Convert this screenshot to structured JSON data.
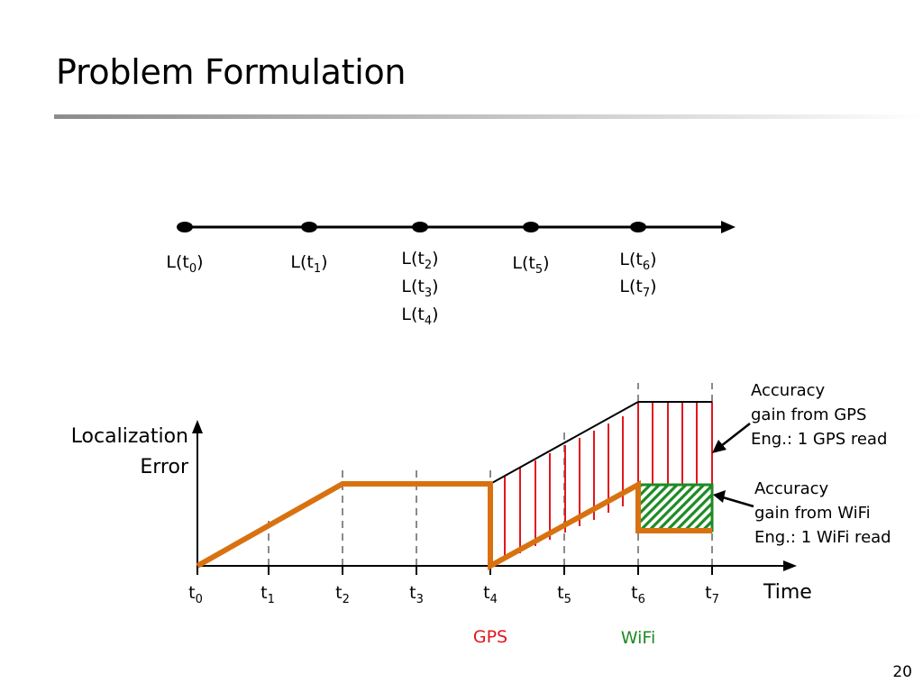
{
  "slide": {
    "title": "Problem Formulation",
    "page_number": "20"
  },
  "location_timeline": {
    "labels": [
      {
        "lines": [
          {
            "base": "L(t",
            "sub": "0",
            "tail": ")"
          }
        ]
      },
      {
        "lines": [
          {
            "base": "L(t",
            "sub": "1",
            "tail": ")"
          }
        ]
      },
      {
        "lines": [
          {
            "base": "L(t",
            "sub": "2",
            "tail": ")"
          },
          {
            "base": "L(t",
            "sub": "3",
            "tail": ")"
          },
          {
            "base": "L(t",
            "sub": "4",
            "tail": ")"
          }
        ]
      },
      {
        "lines": [
          {
            "base": "L(t",
            "sub": "5",
            "tail": ")"
          }
        ]
      },
      {
        "lines": [
          {
            "base": "L(t",
            "sub": "6",
            "tail": ")"
          },
          {
            "base": "L(t",
            "sub": "7",
            "tail": ")"
          }
        ]
      }
    ]
  },
  "error_graph": {
    "y_axis_label_line1": "Localization",
    "y_axis_label_line2": "Error",
    "x_axis_label": "Time",
    "ticks": [
      {
        "base": "t",
        "sub": "0"
      },
      {
        "base": "t",
        "sub": "1"
      },
      {
        "base": "t",
        "sub": "2"
      },
      {
        "base": "t",
        "sub": "3"
      },
      {
        "base": "t",
        "sub": "4"
      },
      {
        "base": "t",
        "sub": "5"
      },
      {
        "base": "t",
        "sub": "6"
      },
      {
        "base": "t",
        "sub": "7"
      }
    ],
    "gps_label": "GPS",
    "wifi_label": "WiFi",
    "gps_annotation": [
      "Accuracy",
      "gain from GPS",
      "Eng.: 1 GPS read"
    ],
    "wifi_annotation": [
      "Accuracy",
      "gain from WiFi",
      "Eng.: 1 WiFi read"
    ]
  },
  "colors": {
    "error_curve": "#d87210",
    "gps": "#e3161f",
    "wifi": "#1f8a24",
    "axis": "#000000",
    "dashed_guides": "#8a8a8a"
  }
}
